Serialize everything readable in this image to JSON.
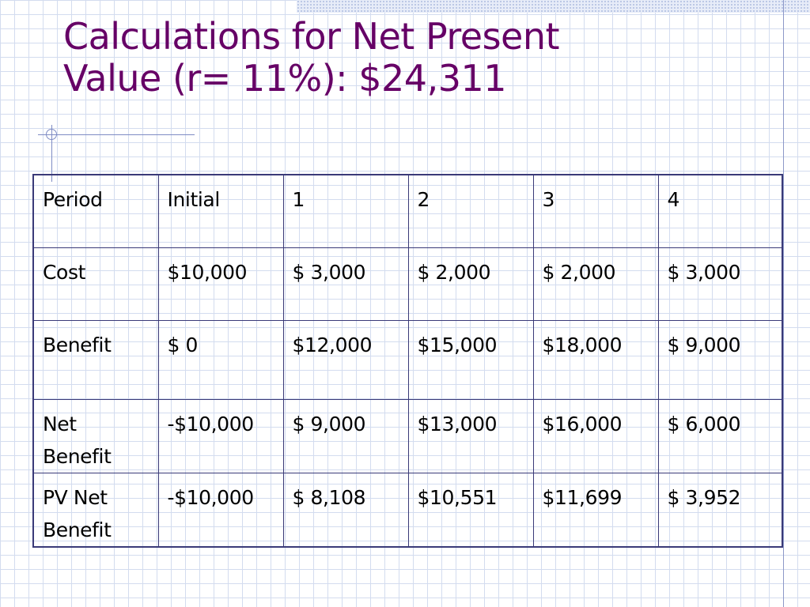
{
  "slide": {
    "title_line1": "Calculations for Net Present",
    "title_line2": "Value (r= 11%):  $24,311"
  },
  "table": {
    "rows": [
      [
        "Period",
        "Initial",
        "1",
        "2",
        "3",
        "4"
      ],
      [
        "Cost",
        "$10,000",
        "$ 3,000",
        "$ 2,000",
        "$ 2,000",
        "$ 3,000"
      ],
      [
        "Benefit",
        "$ 0",
        "$12,000",
        "$15,000",
        "$18,000",
        "$ 9,000"
      ],
      [
        "Net Benefit",
        "-$10,000",
        "$ 9,000",
        "$13,000",
        "$16,000",
        "$ 6,000"
      ],
      [
        "PV Net Benefit",
        "-$10,000",
        "$ 8,108",
        "$10,551",
        "$11,699",
        "$ 3,952"
      ]
    ],
    "row3_label_lines": [
      "Net",
      "Benefit"
    ],
    "row4_label_lines": [
      "PV Net",
      "Benefit"
    ]
  },
  "colors": {
    "title": "#660066",
    "table_border": "#3a3a78",
    "grid": "#d3dcef"
  }
}
